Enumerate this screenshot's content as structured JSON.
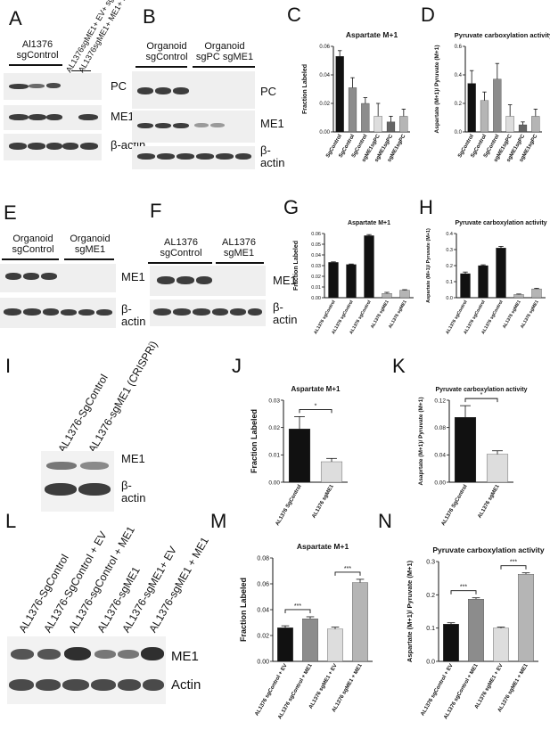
{
  "letters": {
    "A": "A",
    "B": "B",
    "C": "C",
    "D": "D",
    "E": "E",
    "F": "F",
    "G": "G",
    "H": "H",
    "I": "I",
    "J": "J",
    "K": "K",
    "L": "L",
    "M": "M",
    "N": "N"
  },
  "blots": {
    "A": {
      "group1": "Al1376 sgControl",
      "lanes": [
        "AL1376sgME1+ EV+ sgPC",
        "AL1376sgME1+ ME1+ sgPC"
      ],
      "rows": [
        "PC",
        "ME1",
        "β-actin"
      ]
    },
    "B": {
      "group1": "Organoid sgControl",
      "group2": "Organoid sgPC sgME1",
      "rows": [
        "PC",
        "ME1",
        "β-actin"
      ]
    },
    "E": {
      "group1": "Organoid sgControl",
      "group2": "Organoid sgME1",
      "rows": [
        "ME1",
        "β-actin"
      ]
    },
    "F": {
      "group1": "AL1376 sgControl",
      "group2": "AL1376 sgME1",
      "rows": [
        "ME1",
        "β-actin"
      ]
    },
    "I": {
      "lanes": [
        "AL1376-SgControl",
        "AL1376-sgME1 (CRISPRi)"
      ],
      "rows": [
        "ME1",
        "β-actin"
      ]
    },
    "L": {
      "lanes": [
        "AL1376-SgControl",
        "AL1376-SgControl + EV",
        "AL1376-sgControl + ME1",
        "AL1376-sgME1",
        "AL1376-sgME1+ EV",
        "AL1376-sgME1 + ME1"
      ],
      "rows": [
        "ME1",
        "Actin"
      ]
    }
  },
  "chart_data": [
    {
      "panel": "C",
      "type": "bar",
      "title": "Aspartate M+1",
      "ylabel": "Fraction Labeled",
      "ylim": [
        0,
        0.06
      ],
      "yticks": [
        "0.00",
        "0.02",
        "0.04",
        "0.06"
      ],
      "categories": [
        "SgControl",
        "SgControl",
        "SgControl",
        "sgME1sgPC",
        "sgME1sgPC",
        "sgME1sgPC"
      ],
      "values": [
        0.053,
        0.031,
        0.02,
        0.011,
        0.007,
        0.011
      ],
      "errors": [
        0.004,
        0.007,
        0.004,
        0.009,
        0.004,
        0.005
      ],
      "colors": [
        "#111111",
        "#8c8c8c",
        "#8c8c8c",
        "#dddddd",
        "#666666",
        "#b5b5b5"
      ]
    },
    {
      "panel": "D",
      "type": "bar",
      "title": "Pyruvate carboxylation activity",
      "ylabel": "Aspartate (M+1)/ Pyruvate (M+1)",
      "ylim": [
        0,
        0.6
      ],
      "yticks": [
        "0.0",
        "0.2",
        "0.4",
        "0.6"
      ],
      "categories": [
        "SgControl",
        "SgControl",
        "SgControl",
        "sgME1sgPC",
        "sgME1sgPC",
        "sgME1sgPC"
      ],
      "values": [
        0.34,
        0.22,
        0.37,
        0.11,
        0.05,
        0.11
      ],
      "errors": [
        0.09,
        0.06,
        0.11,
        0.08,
        0.02,
        0.05
      ],
      "colors": [
        "#111111",
        "#b5b5b5",
        "#8c8c8c",
        "#dddddd",
        "#666666",
        "#b5b5b5"
      ]
    },
    {
      "panel": "G",
      "type": "bar",
      "title": "Aspartate M+1",
      "ylabel": "Fraction Labeled",
      "ylim": [
        0,
        0.06
      ],
      "yticks": [
        "0.00",
        "0.01",
        "0.02",
        "0.03",
        "0.04",
        "0.05",
        "0.06"
      ],
      "categories": [
        "AL1376 sgControl",
        "AL1376 sgControl",
        "AL1376 sgControl",
        "AL1376 sgME1",
        "AL1376 sgME1"
      ],
      "values": [
        0.033,
        0.031,
        0.058,
        0.004,
        0.007
      ],
      "errors": [
        0.0005,
        0.0005,
        0.001,
        0.001,
        0.0005
      ],
      "colors": [
        "#111111",
        "#111111",
        "#111111",
        "#b5b5b5",
        "#b5b5b5"
      ]
    },
    {
      "panel": "H",
      "type": "bar",
      "title": "Pyruvate carboxylation activity",
      "ylabel": "Aspartate (M+1)/ Pyruvate (M+1)",
      "ylim": [
        0,
        0.4
      ],
      "yticks": [
        "0.0",
        "0.1",
        "0.2",
        "0.3",
        "0.4"
      ],
      "categories": [
        "AL1376 sgControl",
        "AL1376 sgControl",
        "AL1376 sgControl",
        "AL1376 sgME1",
        "AL1376 sgME1"
      ],
      "values": [
        0.15,
        0.2,
        0.31,
        0.02,
        0.055
      ],
      "errors": [
        0.01,
        0.005,
        0.01,
        0.003,
        0.004
      ],
      "colors": [
        "#111111",
        "#111111",
        "#111111",
        "#b5b5b5",
        "#b5b5b5"
      ]
    },
    {
      "panel": "J",
      "type": "bar",
      "title": "Aspartate M+1",
      "ylabel": "Fraction Labeled",
      "ylim": [
        0,
        0.03
      ],
      "yticks": [
        "0.00",
        "0.01",
        "0.02",
        "0.03"
      ],
      "categories": [
        "AL1376 SgControl",
        "AL1376 sgME1"
      ],
      "values": [
        0.0195,
        0.0075
      ],
      "errors": [
        0.0045,
        0.0012
      ],
      "colors": [
        "#111111",
        "#dddddd"
      ],
      "sig": [
        {
          "from": 0,
          "to": 1,
          "label": "*"
        }
      ]
    },
    {
      "panel": "K",
      "type": "bar",
      "title": "Pyruvate carboxylation activity",
      "ylabel": "Asaprtate (M+1)/ Pyruvate (M+1)",
      "ylim": [
        0,
        0.12
      ],
      "yticks": [
        "0.00",
        "0.04",
        "0.08",
        "0.12"
      ],
      "categories": [
        "AL1376 SgControl",
        "AL1376 sgME1"
      ],
      "values": [
        0.095,
        0.041
      ],
      "errors": [
        0.017,
        0.005
      ],
      "colors": [
        "#111111",
        "#dddddd"
      ],
      "sig": [
        {
          "from": 0,
          "to": 1,
          "label": "*"
        }
      ]
    },
    {
      "panel": "M",
      "type": "bar",
      "title": "Aspartate M+1",
      "ylabel": "Fraction Labeled",
      "ylim": [
        0,
        0.08
      ],
      "yticks": [
        "0.00",
        "0.02",
        "0.04",
        "0.06",
        "0.08"
      ],
      "categories": [
        "AL1376 sgControl + EV",
        "AL1376 sgControl + ME1",
        "AL1376 sgME1 + EV",
        "AL1376 sgME1 + ME1"
      ],
      "values": [
        0.026,
        0.033,
        0.025,
        0.061
      ],
      "errors": [
        0.0015,
        0.0015,
        0.0015,
        0.0025
      ],
      "colors": [
        "#111111",
        "#8c8c8c",
        "#dddddd",
        "#b5b5b5"
      ],
      "sig": [
        {
          "from": 0,
          "to": 1,
          "label": "***"
        },
        {
          "from": 2,
          "to": 3,
          "label": "***"
        }
      ]
    },
    {
      "panel": "N",
      "type": "bar",
      "title": "Pyruvate carboxylation activity",
      "ylabel": "Aspartate (M+1)/ Pyruvate (M+1)",
      "ylim": [
        0,
        0.3
      ],
      "yticks": [
        "0.0",
        "0.1",
        "0.2",
        "0.3"
      ],
      "categories": [
        "AL1376 sgControl + EV",
        "AL1376 sgControl + ME1",
        "AL1376 sgME1 + EV",
        "AL1376 sgME1 + ME1"
      ],
      "values": [
        0.112,
        0.187,
        0.1,
        0.262
      ],
      "errors": [
        0.004,
        0.004,
        0.003,
        0.004
      ],
      "colors": [
        "#111111",
        "#8c8c8c",
        "#dddddd",
        "#b5b5b5"
      ],
      "sig": [
        {
          "from": 0,
          "to": 1,
          "label": "***"
        },
        {
          "from": 2,
          "to": 3,
          "label": "***"
        }
      ]
    }
  ]
}
